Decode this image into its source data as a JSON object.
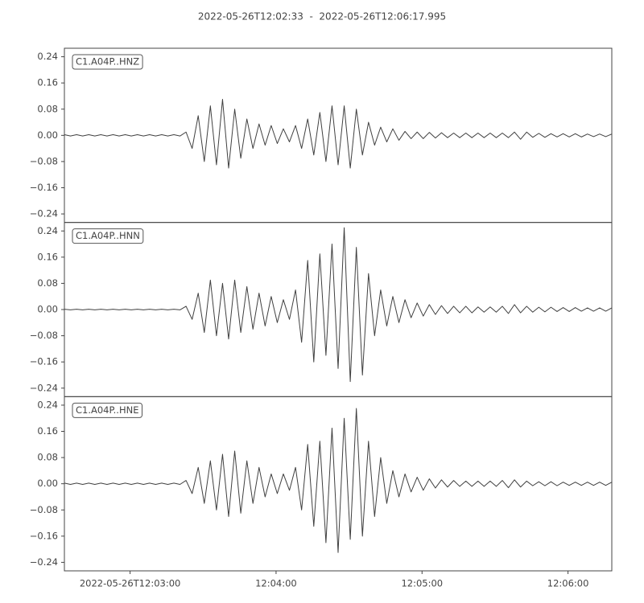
{
  "chart_data": [
    {
      "type": "line",
      "title": "2022-05-26T12:02:33  -  2022-05-26T12:06:17.995",
      "label": "C1.A04P..HNZ",
      "color": "#404040",
      "xlim": [
        0,
        225
      ],
      "ylim": [
        -0.266,
        0.266
      ],
      "yticks": [
        0.24,
        0.16,
        0.08,
        {
          "value": 0,
          "label": "0.00"
        },
        {
          "value": -0.08,
          "label": "−0.08"
        },
        {
          "value": -0.16,
          "label": "−0.16"
        },
        {
          "value": -0.24,
          "label": "−0.24"
        }
      ],
      "x": [
        0,
        2.5,
        5,
        7.5,
        10,
        12.5,
        15,
        17.5,
        20,
        22.5,
        25,
        27.5,
        30,
        32.5,
        35,
        37.5,
        40,
        42.5,
        45,
        47.5,
        50,
        52.5,
        55,
        57.5,
        60,
        62.5,
        65,
        67.5,
        70,
        72.5,
        75,
        77.5,
        80,
        82.5,
        85,
        87.5,
        90,
        92.5,
        95,
        97.5,
        100,
        102.5,
        105,
        107.5,
        110,
        112.5,
        115,
        117.5,
        120,
        122.5,
        125,
        127.5,
        130,
        132.5,
        135,
        137.5,
        140,
        142.5,
        145,
        147.5,
        150,
        152.5,
        155,
        157.5,
        160,
        162.5,
        165,
        167.5,
        170,
        172.5,
        175,
        177.5,
        180,
        182.5,
        185,
        187.5,
        190,
        192.5,
        195,
        197.5,
        200,
        202.5,
        205,
        207.5,
        210,
        212.5,
        215,
        217.5,
        220,
        222.5,
        225
      ],
      "values": [
        0.002,
        -0.002,
        0.002,
        -0.002,
        0.002,
        -0.002,
        0.002,
        -0.002,
        0.002,
        -0.002,
        0.002,
        -0.002,
        0.002,
        -0.002,
        0.002,
        -0.002,
        0.002,
        -0.002,
        0.002,
        -0.002,
        0.01,
        -0.04,
        0.06,
        -0.08,
        0.09,
        -0.09,
        0.11,
        -0.1,
        0.08,
        -0.07,
        0.05,
        -0.04,
        0.035,
        -0.03,
        0.03,
        -0.025,
        0.02,
        -0.02,
        0.03,
        -0.04,
        0.05,
        -0.06,
        0.07,
        -0.08,
        0.09,
        -0.09,
        0.09,
        -0.1,
        0.08,
        -0.06,
        0.04,
        -0.03,
        0.025,
        -0.02,
        0.02,
        -0.015,
        0.012,
        -0.01,
        0.01,
        -0.01,
        0.009,
        -0.008,
        0.008,
        -0.007,
        0.007,
        -0.007,
        0.007,
        -0.007,
        0.007,
        -0.007,
        0.007,
        -0.007,
        0.007,
        -0.007,
        0.01,
        -0.012,
        0.01,
        -0.006,
        0.006,
        -0.006,
        0.005,
        -0.005,
        0.005,
        -0.005,
        0.005,
        -0.005,
        0.004,
        -0.004,
        0.004,
        -0.004,
        0.004
      ]
    },
    {
      "type": "line",
      "label": "C1.A04P..HNN",
      "color": "#404040",
      "xlim": [
        0,
        225
      ],
      "ylim": [
        -0.266,
        0.266
      ],
      "yticks": [
        0.24,
        0.16,
        0.08,
        {
          "value": 0,
          "label": "0.00"
        },
        {
          "value": -0.08,
          "label": "−0.08"
        },
        {
          "value": -0.16,
          "label": "−0.16"
        },
        {
          "value": -0.24,
          "label": "−0.24"
        }
      ],
      "x": [
        0,
        2.5,
        5,
        7.5,
        10,
        12.5,
        15,
        17.5,
        20,
        22.5,
        25,
        27.5,
        30,
        32.5,
        35,
        37.5,
        40,
        42.5,
        45,
        47.5,
        50,
        52.5,
        55,
        57.5,
        60,
        62.5,
        65,
        67.5,
        70,
        72.5,
        75,
        77.5,
        80,
        82.5,
        85,
        87.5,
        90,
        92.5,
        95,
        97.5,
        100,
        102.5,
        105,
        107.5,
        110,
        112.5,
        115,
        117.5,
        120,
        122.5,
        125,
        127.5,
        130,
        132.5,
        135,
        137.5,
        140,
        142.5,
        145,
        147.5,
        150,
        152.5,
        155,
        157.5,
        160,
        162.5,
        165,
        167.5,
        170,
        172.5,
        175,
        177.5,
        180,
        182.5,
        185,
        187.5,
        190,
        192.5,
        195,
        197.5,
        200,
        202.5,
        205,
        207.5,
        210,
        212.5,
        215,
        217.5,
        220,
        222.5,
        225
      ],
      "values": [
        0.001,
        -0.001,
        0.001,
        -0.001,
        0.001,
        -0.001,
        0.001,
        -0.001,
        0.001,
        -0.001,
        0.001,
        -0.001,
        0.001,
        -0.001,
        0.001,
        -0.001,
        0.001,
        -0.001,
        0.001,
        -0.001,
        0.01,
        -0.03,
        0.05,
        -0.07,
        0.09,
        -0.08,
        0.08,
        -0.09,
        0.09,
        -0.07,
        0.07,
        -0.06,
        0.05,
        -0.05,
        0.04,
        -0.04,
        0.03,
        -0.03,
        0.06,
        -0.1,
        0.15,
        -0.16,
        0.17,
        -0.14,
        0.2,
        -0.18,
        0.25,
        -0.22,
        0.19,
        -0.2,
        0.11,
        -0.08,
        0.06,
        -0.05,
        0.04,
        -0.04,
        0.03,
        -0.025,
        0.02,
        -0.02,
        0.015,
        -0.015,
        0.012,
        -0.012,
        0.01,
        -0.01,
        0.01,
        -0.01,
        0.008,
        -0.008,
        0.008,
        -0.008,
        0.01,
        -0.012,
        0.015,
        -0.01,
        0.01,
        -0.008,
        0.007,
        -0.007,
        0.007,
        -0.006,
        0.006,
        -0.006,
        0.006,
        -0.005,
        0.005,
        -0.005,
        0.005,
        -0.005,
        0.005
      ]
    },
    {
      "type": "line",
      "label": "C1.A04P..HNE",
      "color": "#404040",
      "xlim": [
        0,
        225
      ],
      "ylim": [
        -0.266,
        0.266
      ],
      "yticks": [
        0.24,
        0.16,
        0.08,
        {
          "value": 0,
          "label": "0.00"
        },
        {
          "value": -0.08,
          "label": "−0.08"
        },
        {
          "value": -0.16,
          "label": "−0.16"
        },
        {
          "value": -0.24,
          "label": "−0.24"
        }
      ],
      "xticks": [
        {
          "value": 27,
          "label": "2022-05-26T12:03:00"
        },
        {
          "value": 87,
          "label": "12:04:00"
        },
        {
          "value": 147,
          "label": "12:05:00"
        },
        {
          "value": 207,
          "label": "12:06:00"
        }
      ],
      "x": [
        0,
        2.5,
        5,
        7.5,
        10,
        12.5,
        15,
        17.5,
        20,
        22.5,
        25,
        27.5,
        30,
        32.5,
        35,
        37.5,
        40,
        42.5,
        45,
        47.5,
        50,
        52.5,
        55,
        57.5,
        60,
        62.5,
        65,
        67.5,
        70,
        72.5,
        75,
        77.5,
        80,
        82.5,
        85,
        87.5,
        90,
        92.5,
        95,
        97.5,
        100,
        102.5,
        105,
        107.5,
        110,
        112.5,
        115,
        117.5,
        120,
        122.5,
        125,
        127.5,
        130,
        132.5,
        135,
        137.5,
        140,
        142.5,
        145,
        147.5,
        150,
        152.5,
        155,
        157.5,
        160,
        162.5,
        165,
        167.5,
        170,
        172.5,
        175,
        177.5,
        180,
        182.5,
        185,
        187.5,
        190,
        192.5,
        195,
        197.5,
        200,
        202.5,
        205,
        207.5,
        210,
        212.5,
        215,
        217.5,
        220,
        222.5,
        225
      ],
      "values": [
        0.002,
        -0.002,
        0.002,
        -0.002,
        0.002,
        -0.002,
        0.002,
        -0.002,
        0.002,
        -0.002,
        0.002,
        -0.002,
        0.002,
        -0.002,
        0.002,
        -0.002,
        0.002,
        -0.002,
        0.002,
        -0.002,
        0.01,
        -0.03,
        0.05,
        -0.06,
        0.07,
        -0.08,
        0.09,
        -0.1,
        0.1,
        -0.09,
        0.07,
        -0.06,
        0.05,
        -0.04,
        0.03,
        -0.03,
        0.03,
        -0.02,
        0.05,
        -0.08,
        0.12,
        -0.13,
        0.13,
        -0.18,
        0.17,
        -0.21,
        0.2,
        -0.17,
        0.23,
        -0.16,
        0.13,
        -0.1,
        0.08,
        -0.06,
        0.04,
        -0.04,
        0.03,
        -0.025,
        0.02,
        -0.02,
        0.015,
        -0.013,
        0.012,
        -0.01,
        0.01,
        -0.008,
        0.008,
        -0.008,
        0.008,
        -0.008,
        0.008,
        -0.008,
        0.01,
        -0.012,
        0.012,
        -0.01,
        0.008,
        -0.006,
        0.006,
        -0.006,
        0.006,
        -0.006,
        0.005,
        -0.005,
        0.005,
        -0.005,
        0.005,
        -0.005,
        0.005,
        -0.005,
        0.005
      ]
    }
  ]
}
